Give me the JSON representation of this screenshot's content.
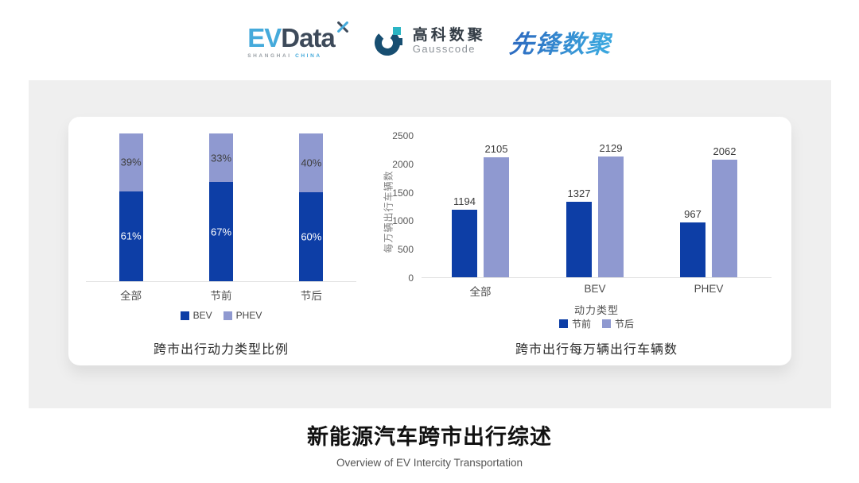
{
  "header": {
    "evdata": {
      "ev": "EV",
      "data": "Data",
      "tagline_left": "SHANGHAI",
      "tagline_right": "CHINA"
    },
    "gausscode": {
      "name_cn": "高科数聚",
      "name_en": "Gausscode"
    },
    "xianfeng": {
      "name": "先锋数聚"
    }
  },
  "colors": {
    "series_dark_blue": "#0d3ea6",
    "series_light_periwinkle": "#8f99d0",
    "card_background": "#efefef",
    "evdata_blue": "#45aadb",
    "evdata_slate": "#3d4a5a",
    "gausscode_navy": "#174e71",
    "gausscode_teal": "#2ab5c4",
    "xianfeng_gradient_start": "#2e6ec2",
    "xianfeng_gradient_end": "#3ba6de"
  },
  "chart_data": [
    {
      "type": "bar",
      "variant": "stacked-percent",
      "title": "跨市出行动力类型比例",
      "categories": [
        "全部",
        "节前",
        "节后"
      ],
      "series": [
        {
          "name": "BEV",
          "color": "#0d3ea6",
          "values": [
            61,
            67,
            60
          ],
          "labels": [
            "61%",
            "67%",
            "60%"
          ],
          "label_color": "#ffffff"
        },
        {
          "name": "PHEV",
          "color": "#8f99d0",
          "values": [
            39,
            33,
            40
          ],
          "labels": [
            "39%",
            "33%",
            "40%"
          ],
          "label_color": "#3f3f3f"
        }
      ],
      "ylim": [
        0,
        100
      ],
      "legend_position": "bottom",
      "grid": false
    },
    {
      "type": "bar",
      "variant": "grouped",
      "title": "跨市出行每万辆出行车辆数",
      "xlabel": "动力类型",
      "ylabel": "每万辆出行车辆数",
      "categories": [
        "全部",
        "BEV",
        "PHEV"
      ],
      "series": [
        {
          "name": "节前",
          "color": "#0d3ea6",
          "values": [
            1194,
            1327,
            967
          ]
        },
        {
          "name": "节后",
          "color": "#8f99d0",
          "values": [
            2105,
            2129,
            2062
          ]
        }
      ],
      "ylim": [
        0,
        2500
      ],
      "yticks": [
        0,
        500,
        1000,
        1500,
        2000,
        2500
      ],
      "legend_position": "bottom",
      "grid": false
    }
  ],
  "footer": {
    "title": "新能源汽车跨市出行综述",
    "subtitle": "Overview of EV Intercity Transportation"
  }
}
